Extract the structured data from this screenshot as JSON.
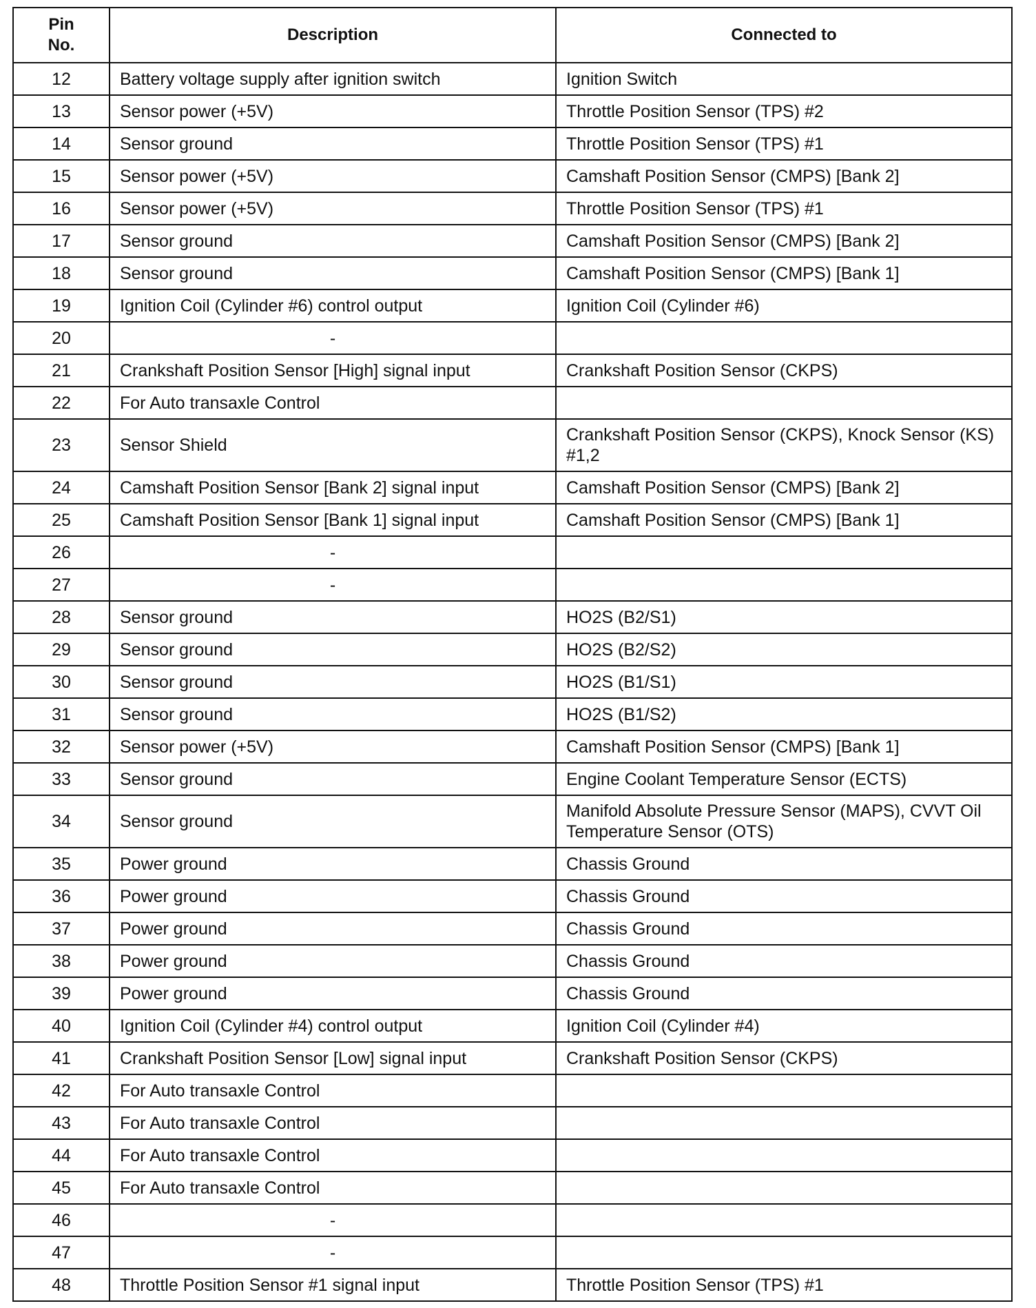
{
  "table": {
    "headers": {
      "pin": "Pin No.",
      "pin_line1": "Pin",
      "pin_line2": "No.",
      "description": "Description",
      "connected": "Connected to"
    },
    "rows": [
      {
        "pin": "12",
        "description": "Battery voltage supply after ignition switch",
        "connected": "Ignition Switch"
      },
      {
        "pin": "13",
        "description": "Sensor power (+5V)",
        "connected": "Throttle Position Sensor (TPS) #2"
      },
      {
        "pin": "14",
        "description": "Sensor ground",
        "connected": "Throttle Position Sensor (TPS) #1"
      },
      {
        "pin": "15",
        "description": "Sensor power (+5V)",
        "connected": "Camshaft Position Sensor (CMPS) [Bank 2]"
      },
      {
        "pin": "16",
        "description": "Sensor power (+5V)",
        "connected": "Throttle Position Sensor (TPS) #1"
      },
      {
        "pin": "17",
        "description": "Sensor ground",
        "connected": "Camshaft Position Sensor (CMPS) [Bank 2]"
      },
      {
        "pin": "18",
        "description": "Sensor ground",
        "connected": "Camshaft Position Sensor (CMPS) [Bank 1]"
      },
      {
        "pin": "19",
        "description": "Ignition Coil (Cylinder #6) control output",
        "connected": "Ignition Coil (Cylinder #6)"
      },
      {
        "pin": "20",
        "description": "-",
        "connected": ""
      },
      {
        "pin": "21",
        "description": "Crankshaft Position Sensor [High] signal input",
        "connected": "Crankshaft Position Sensor (CKPS)"
      },
      {
        "pin": "22",
        "description": "For Auto transaxle Control",
        "connected": ""
      },
      {
        "pin": "23",
        "description": "Sensor Shield",
        "connected": "Crankshaft Position Sensor (CKPS), Knock Sensor (KS) #1,2"
      },
      {
        "pin": "24",
        "description": "Camshaft Position Sensor [Bank 2] signal input",
        "connected": "Camshaft Position Sensor (CMPS) [Bank 2]"
      },
      {
        "pin": "25",
        "description": "Camshaft Position Sensor [Bank 1] signal input",
        "connected": "Camshaft Position Sensor (CMPS) [Bank 1]"
      },
      {
        "pin": "26",
        "description": "-",
        "connected": ""
      },
      {
        "pin": "27",
        "description": "-",
        "connected": ""
      },
      {
        "pin": "28",
        "description": "Sensor ground",
        "connected": "HO2S (B2/S1)"
      },
      {
        "pin": "29",
        "description": "Sensor ground",
        "connected": "HO2S (B2/S2)"
      },
      {
        "pin": "30",
        "description": "Sensor ground",
        "connected": "HO2S (B1/S1)"
      },
      {
        "pin": "31",
        "description": "Sensor ground",
        "connected": "HO2S (B1/S2)"
      },
      {
        "pin": "32",
        "description": "Sensor power (+5V)",
        "connected": "Camshaft Position Sensor (CMPS) [Bank 1]"
      },
      {
        "pin": "33",
        "description": "Sensor ground",
        "connected": "Engine Coolant Temperature Sensor (ECTS)"
      },
      {
        "pin": "34",
        "description": "Sensor ground",
        "connected": "Manifold Absolute Pressure Sensor (MAPS), CVVT Oil Temperature Sensor (OTS)"
      },
      {
        "pin": "35",
        "description": "Power ground",
        "connected": "Chassis Ground"
      },
      {
        "pin": "36",
        "description": "Power ground",
        "connected": "Chassis Ground"
      },
      {
        "pin": "37",
        "description": "Power ground",
        "connected": "Chassis Ground"
      },
      {
        "pin": "38",
        "description": "Power ground",
        "connected": "Chassis Ground"
      },
      {
        "pin": "39",
        "description": "Power ground",
        "connected": "Chassis Ground"
      },
      {
        "pin": "40",
        "description": "Ignition Coil (Cylinder #4) control output",
        "connected": "Ignition Coil (Cylinder #4)"
      },
      {
        "pin": "41",
        "description": "Crankshaft Position Sensor [Low] signal input",
        "connected": "Crankshaft Position Sensor (CKPS)"
      },
      {
        "pin": "42",
        "description": "For Auto transaxle Control",
        "connected": ""
      },
      {
        "pin": "43",
        "description": "For Auto transaxle Control",
        "connected": ""
      },
      {
        "pin": "44",
        "description": "For Auto transaxle Control",
        "connected": ""
      },
      {
        "pin": "45",
        "description": "For Auto transaxle Control",
        "connected": ""
      },
      {
        "pin": "46",
        "description": "-",
        "connected": ""
      },
      {
        "pin": "47",
        "description": "-",
        "connected": ""
      },
      {
        "pin": "48",
        "description": "Throttle Position Sensor #1 signal input",
        "connected": "Throttle Position Sensor (TPS) #1"
      }
    ]
  }
}
